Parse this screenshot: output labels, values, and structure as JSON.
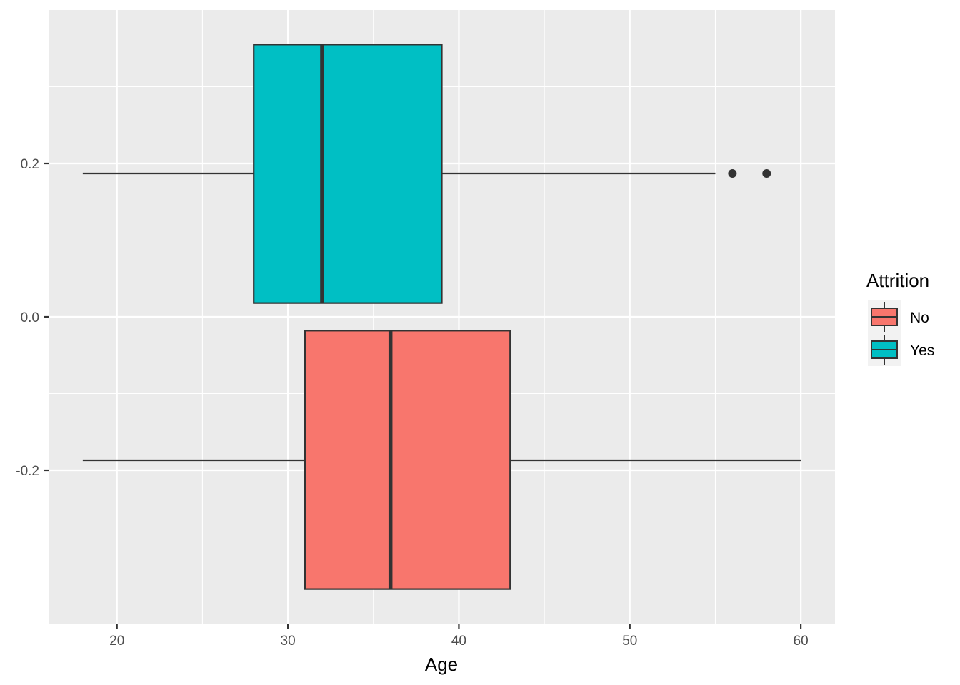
{
  "chart_data": {
    "type": "boxplot",
    "orientation": "horizontal",
    "xlabel": "Age",
    "ylabel": "",
    "xlim": [
      16,
      62
    ],
    "ylim": [
      -0.4,
      0.4
    ],
    "x_ticks": [
      20,
      30,
      40,
      50,
      60
    ],
    "y_ticks": [
      -0.2,
      0.0,
      0.2
    ],
    "y_tick_labels": [
      "-0.2",
      "0.0",
      "0.2"
    ],
    "grid": true,
    "legend": {
      "title": "Attrition",
      "placement": "right"
    },
    "series": [
      {
        "name": "No",
        "color": "#F8766D",
        "box_y_range": [
          -0.355,
          -0.018
        ],
        "y_center": -0.187,
        "whisker_low": 18,
        "q1": 31,
        "median": 36,
        "q3": 43,
        "whisker_high": 60,
        "outliers": []
      },
      {
        "name": "Yes",
        "color": "#00BFC4",
        "box_y_range": [
          0.018,
          0.355
        ],
        "y_center": 0.187,
        "whisker_low": 18,
        "q1": 28,
        "median": 32,
        "q3": 39,
        "whisker_high": 55,
        "outliers": [
          56,
          58
        ]
      }
    ]
  }
}
